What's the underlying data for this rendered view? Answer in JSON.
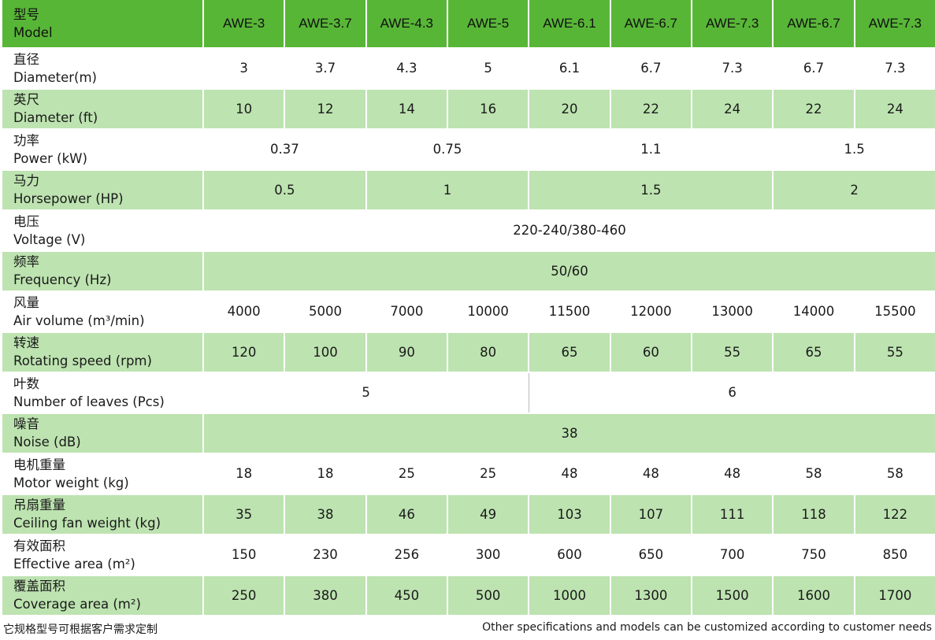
{
  "header": {
    "label_cn": "型号",
    "label_en": "Model",
    "models": [
      "AWE-3",
      "AWE-3.7",
      "AWE-4.3",
      "AWE-5",
      "AWE-6.1",
      "AWE-6.7",
      "AWE-7.3",
      "AWE-6.7",
      "AWE-7.3"
    ]
  },
  "rows": [
    {
      "label_cn": "直径",
      "label_en": "Diameter(m)",
      "cells": [
        {
          "v": "3",
          "span": 1
        },
        {
          "v": "3.7",
          "span": 1
        },
        {
          "v": "4.3",
          "span": 1
        },
        {
          "v": "5",
          "span": 1
        },
        {
          "v": "6.1",
          "span": 1
        },
        {
          "v": "6.7",
          "span": 1
        },
        {
          "v": "7.3",
          "span": 1
        },
        {
          "v": "6.7",
          "span": 1
        },
        {
          "v": "7.3",
          "span": 1
        }
      ]
    },
    {
      "label_cn": "英尺",
      "label_en": "Diameter (ft)",
      "cells": [
        {
          "v": "10",
          "span": 1
        },
        {
          "v": "12",
          "span": 1
        },
        {
          "v": "14",
          "span": 1
        },
        {
          "v": "16",
          "span": 1
        },
        {
          "v": "20",
          "span": 1
        },
        {
          "v": "22",
          "span": 1
        },
        {
          "v": "24",
          "span": 1
        },
        {
          "v": "22",
          "span": 1
        },
        {
          "v": "24",
          "span": 1
        }
      ]
    },
    {
      "label_cn": "功率",
      "label_en": "Power (kW)",
      "cells": [
        {
          "v": "0.37",
          "span": 2
        },
        {
          "v": "0.75",
          "span": 2
        },
        {
          "v": "1.1",
          "span": 3
        },
        {
          "v": "1.5",
          "span": 2
        }
      ]
    },
    {
      "label_cn": "马力",
      "label_en": "Horsepower (HP)",
      "cells": [
        {
          "v": "0.5",
          "span": 2
        },
        {
          "v": "1",
          "span": 2
        },
        {
          "v": "1.5",
          "span": 3
        },
        {
          "v": "2",
          "span": 2
        }
      ]
    },
    {
      "label_cn": "电压",
      "label_en": "Voltage (V)",
      "cells": [
        {
          "v": "220-240/380-460",
          "span": 9
        }
      ]
    },
    {
      "label_cn": "频率",
      "label_en": "Frequency (Hz)",
      "cells": [
        {
          "v": "50/60",
          "span": 9
        }
      ]
    },
    {
      "label_cn": "风量",
      "label_en": "Air volume (m³/min)",
      "cells": [
        {
          "v": "4000",
          "span": 1
        },
        {
          "v": "5000",
          "span": 1
        },
        {
          "v": "7000",
          "span": 1
        },
        {
          "v": "10000",
          "span": 1
        },
        {
          "v": "11500",
          "span": 1
        },
        {
          "v": "12000",
          "span": 1
        },
        {
          "v": "13000",
          "span": 1
        },
        {
          "v": "14000",
          "span": 1
        },
        {
          "v": "15500",
          "span": 1
        }
      ]
    },
    {
      "label_cn": "转速",
      "label_en": "Rotating speed (rpm)",
      "cells": [
        {
          "v": "120",
          "span": 1
        },
        {
          "v": "100",
          "span": 1
        },
        {
          "v": "90",
          "span": 1
        },
        {
          "v": "80",
          "span": 1
        },
        {
          "v": "65",
          "span": 1
        },
        {
          "v": "60",
          "span": 1
        },
        {
          "v": "55",
          "span": 1
        },
        {
          "v": "65",
          "span": 1
        },
        {
          "v": "55",
          "span": 1
        }
      ]
    },
    {
      "label_cn": "叶数",
      "label_en": "Number of leaves (Pcs)",
      "cells": [
        {
          "v": "5",
          "span": 4
        },
        {
          "v": "6",
          "span": 5
        }
      ]
    },
    {
      "label_cn": "噪音",
      "label_en": "Noise (dB)",
      "cells": [
        {
          "v": "38",
          "span": 9
        }
      ]
    },
    {
      "label_cn": "电机重量",
      "label_en": "Motor weight (kg)",
      "cells": [
        {
          "v": "18",
          "span": 1
        },
        {
          "v": "18",
          "span": 1
        },
        {
          "v": "25",
          "span": 1
        },
        {
          "v": "25",
          "span": 1
        },
        {
          "v": "48",
          "span": 1
        },
        {
          "v": "48",
          "span": 1
        },
        {
          "v": "48",
          "span": 1
        },
        {
          "v": "58",
          "span": 1
        },
        {
          "v": "58",
          "span": 1
        }
      ]
    },
    {
      "label_cn": "吊扇重量",
      "label_en": "Ceiling fan weight (kg)",
      "cells": [
        {
          "v": "35",
          "span": 1
        },
        {
          "v": "38",
          "span": 1
        },
        {
          "v": "46",
          "span": 1
        },
        {
          "v": "49",
          "span": 1
        },
        {
          "v": "103",
          "span": 1
        },
        {
          "v": "107",
          "span": 1
        },
        {
          "v": "111",
          "span": 1
        },
        {
          "v": "118",
          "span": 1
        },
        {
          "v": "122",
          "span": 1
        }
      ]
    },
    {
      "label_cn": "有效面积",
      "label_en": "Effective area (m²)",
      "cells": [
        {
          "v": "150",
          "span": 1
        },
        {
          "v": "230",
          "span": 1
        },
        {
          "v": "256",
          "span": 1
        },
        {
          "v": "300",
          "span": 1
        },
        {
          "v": "600",
          "span": 1
        },
        {
          "v": "650",
          "span": 1
        },
        {
          "v": "700",
          "span": 1
        },
        {
          "v": "750",
          "span": 1
        },
        {
          "v": "850",
          "span": 1
        }
      ]
    },
    {
      "label_cn": "覆盖面积",
      "label_en": "Coverage area (m²)",
      "cells": [
        {
          "v": "250",
          "span": 1
        },
        {
          "v": "380",
          "span": 1
        },
        {
          "v": "450",
          "span": 1
        },
        {
          "v": "500",
          "span": 1
        },
        {
          "v": "1000",
          "span": 1
        },
        {
          "v": "1300",
          "span": 1
        },
        {
          "v": "1500",
          "span": 1
        },
        {
          "v": "1600",
          "span": 1
        },
        {
          "v": "1700",
          "span": 1
        }
      ]
    }
  ],
  "footer": {
    "note_cn": "它规格型号可根据客户需求定制",
    "note_en": "Other specifications and models can be customized according to customer needs"
  },
  "colors": {
    "header": "#58b637",
    "row_alt": "#bde3b0",
    "row": "#ffffff"
  }
}
